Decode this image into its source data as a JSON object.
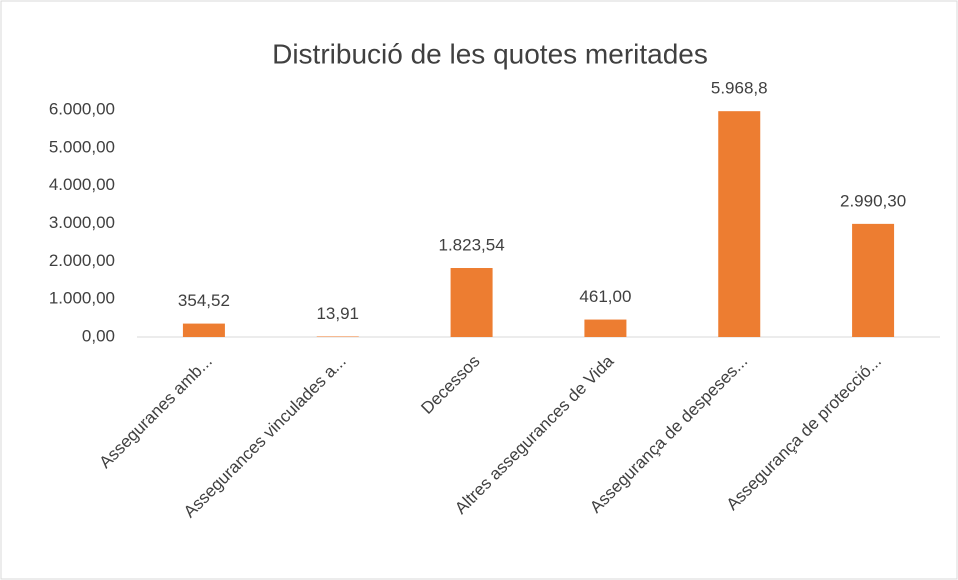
{
  "chart_data": {
    "type": "bar",
    "title": "Distribució de les quotes meritades",
    "categories": [
      "Asseguranes amb...",
      "Assegurances vinculades a...",
      "Decessos",
      "Altres assegurances de Vida",
      "Assegurança de despeses...",
      "Assegurança de protecció..."
    ],
    "values": [
      354.52,
      13.91,
      1823.54,
      461.0,
      5968.8,
      2990.3
    ],
    "value_labels": [
      "354,52",
      "13,91",
      "1.823,54",
      "461,00",
      "5.968,8",
      "2.990,30"
    ],
    "color": "#ed7d31",
    "ylim": [
      0,
      6000
    ],
    "yticks": [
      {
        "value": 0,
        "label": "0,00"
      },
      {
        "value": 1000,
        "label": "1.000,00"
      },
      {
        "value": 2000,
        "label": "2.000,00"
      },
      {
        "value": 3000,
        "label": "3.000,00"
      },
      {
        "value": 4000,
        "label": "4.000,00"
      },
      {
        "value": 5000,
        "label": "5.000,00"
      },
      {
        "value": 6000,
        "label": "6.000,00"
      }
    ],
    "grid": false
  }
}
